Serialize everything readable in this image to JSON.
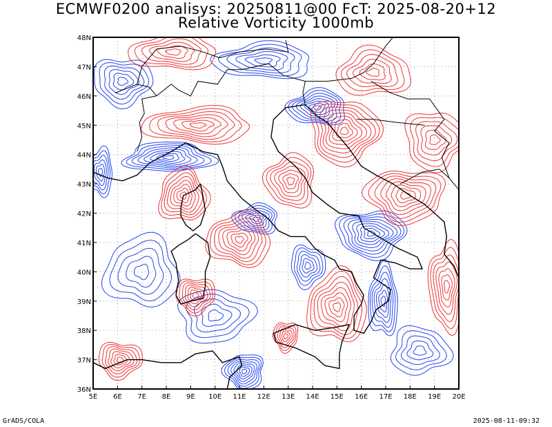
{
  "title_line1": "ECMWF0200 analisys: 20250811@00 FcT: 2025-08-20+12",
  "title_line2": "Relative Vorticity 1000mb",
  "footer_left": "GrADS/COLA",
  "footer_right": "2025-08-11-09:32",
  "map": {
    "lon_range": [
      5,
      20
    ],
    "lat_range": [
      36,
      48
    ],
    "lon_ticks": [
      "5E",
      "6E",
      "7E",
      "8E",
      "9E",
      "10E",
      "11E",
      "12E",
      "13E",
      "14E",
      "15E",
      "16E",
      "17E",
      "18E",
      "19E",
      "20E"
    ],
    "lat_ticks": [
      "36N",
      "37N",
      "38N",
      "39N",
      "40N",
      "41N",
      "42N",
      "43N",
      "44N",
      "45N",
      "46N",
      "47N",
      "48N"
    ],
    "colors": {
      "positive_contour": "#ee3333",
      "negative_contour": "#2244ee",
      "coastline": "#000000",
      "grid": "#999999"
    },
    "positive_centers": [
      {
        "lon": 15.3,
        "lat": 44.8,
        "w": 1.4,
        "h": 1.1,
        "n": 9
      },
      {
        "lon": 13.1,
        "lat": 43.1,
        "w": 1.0,
        "h": 0.9,
        "n": 7
      },
      {
        "lon": 8.7,
        "lat": 42.6,
        "w": 1.0,
        "h": 0.9,
        "n": 8
      },
      {
        "lon": 9.2,
        "lat": 39.2,
        "w": 0.8,
        "h": 0.6,
        "n": 7
      },
      {
        "lon": 11.0,
        "lat": 41.1,
        "w": 1.3,
        "h": 0.9,
        "n": 8
      },
      {
        "lon": 15.0,
        "lat": 38.8,
        "w": 1.2,
        "h": 1.2,
        "n": 8
      },
      {
        "lon": 17.8,
        "lat": 42.6,
        "w": 1.6,
        "h": 0.9,
        "n": 8
      },
      {
        "lon": 19.5,
        "lat": 39.5,
        "w": 0.7,
        "h": 1.5,
        "n": 7
      },
      {
        "lon": 6.1,
        "lat": 37.0,
        "w": 0.9,
        "h": 0.6,
        "n": 7
      },
      {
        "lon": 12.9,
        "lat": 37.8,
        "w": 0.5,
        "h": 0.5,
        "n": 6
      },
      {
        "lon": 9.3,
        "lat": 45.0,
        "w": 2.2,
        "h": 0.6,
        "n": 7
      },
      {
        "lon": 8.3,
        "lat": 47.5,
        "w": 1.8,
        "h": 0.6,
        "n": 6
      },
      {
        "lon": 16.5,
        "lat": 46.8,
        "w": 1.5,
        "h": 0.8,
        "n": 6
      },
      {
        "lon": 19.0,
        "lat": 44.5,
        "w": 1.2,
        "h": 1.0,
        "n": 6
      }
    ],
    "negative_centers": [
      {
        "lon": 14.2,
        "lat": 45.6,
        "w": 1.2,
        "h": 0.6,
        "n": 8
      },
      {
        "lon": 16.4,
        "lat": 41.3,
        "w": 1.4,
        "h": 0.8,
        "n": 9
      },
      {
        "lon": 11.7,
        "lat": 41.8,
        "w": 0.9,
        "h": 0.5,
        "n": 7
      },
      {
        "lon": 13.8,
        "lat": 40.2,
        "w": 0.7,
        "h": 0.7,
        "n": 6
      },
      {
        "lon": 16.9,
        "lat": 39.0,
        "w": 0.6,
        "h": 1.2,
        "n": 7
      },
      {
        "lon": 11.2,
        "lat": 36.6,
        "w": 0.8,
        "h": 0.6,
        "n": 8
      },
      {
        "lon": 8.1,
        "lat": 43.9,
        "w": 1.8,
        "h": 0.5,
        "n": 8
      },
      {
        "lon": 5.3,
        "lat": 43.4,
        "w": 0.5,
        "h": 0.8,
        "n": 6
      },
      {
        "lon": 7.0,
        "lat": 40.0,
        "w": 1.5,
        "h": 1.2,
        "n": 5
      },
      {
        "lon": 12.0,
        "lat": 47.2,
        "w": 2.0,
        "h": 0.6,
        "n": 6
      },
      {
        "lon": 6.2,
        "lat": 46.5,
        "w": 1.2,
        "h": 0.8,
        "n": 6
      },
      {
        "lon": 18.4,
        "lat": 37.3,
        "w": 1.2,
        "h": 0.8,
        "n": 5
      },
      {
        "lon": 10.0,
        "lat": 38.5,
        "w": 1.5,
        "h": 0.9,
        "n": 5
      }
    ],
    "coastlines": [
      [
        [
          7.5,
          43.8
        ],
        [
          8.2,
          44.1
        ],
        [
          8.8,
          44.4
        ],
        [
          9.5,
          44.1
        ],
        [
          10.1,
          44.0
        ],
        [
          10.3,
          43.6
        ],
        [
          10.5,
          43.1
        ],
        [
          11.1,
          42.5
        ],
        [
          11.7,
          42.1
        ],
        [
          12.2,
          41.8
        ],
        [
          12.6,
          41.4
        ],
        [
          13.1,
          41.2
        ],
        [
          13.7,
          41.2
        ],
        [
          14.1,
          40.8
        ],
        [
          14.4,
          40.6
        ],
        [
          14.9,
          40.4
        ],
        [
          15.1,
          40.1
        ],
        [
          15.6,
          40.0
        ],
        [
          15.8,
          39.6
        ],
        [
          16.1,
          39.2
        ],
        [
          16.0,
          38.9
        ],
        [
          15.7,
          38.5
        ],
        [
          15.7,
          38.0
        ],
        [
          16.1,
          37.9
        ],
        [
          16.4,
          38.3
        ],
        [
          16.6,
          38.7
        ],
        [
          17.1,
          39.0
        ],
        [
          17.2,
          39.4
        ],
        [
          16.5,
          39.8
        ],
        [
          16.8,
          40.4
        ],
        [
          17.4,
          40.3
        ],
        [
          18.0,
          40.1
        ],
        [
          18.5,
          40.1
        ],
        [
          18.3,
          40.5
        ],
        [
          17.5,
          40.8
        ],
        [
          16.9,
          41.1
        ],
        [
          16.1,
          41.5
        ],
        [
          15.9,
          41.9
        ],
        [
          15.1,
          42.0
        ],
        [
          14.6,
          42.3
        ],
        [
          14.0,
          42.7
        ],
        [
          13.7,
          43.2
        ],
        [
          13.3,
          43.6
        ],
        [
          12.6,
          44.1
        ],
        [
          12.3,
          44.6
        ],
        [
          12.4,
          45.2
        ],
        [
          12.9,
          45.6
        ],
        [
          13.7,
          45.7
        ]
      ],
      [
        [
          9.2,
          41.3
        ],
        [
          9.7,
          41.0
        ],
        [
          9.8,
          40.5
        ],
        [
          9.6,
          40.0
        ],
        [
          9.6,
          39.5
        ],
        [
          9.5,
          39.1
        ],
        [
          9.0,
          39.0
        ],
        [
          8.6,
          38.9
        ],
        [
          8.4,
          39.2
        ],
        [
          8.5,
          39.7
        ],
        [
          8.4,
          40.3
        ],
        [
          8.2,
          40.7
        ],
        [
          8.5,
          40.9
        ],
        [
          8.9,
          41.1
        ],
        [
          9.2,
          41.3
        ]
      ],
      [
        [
          9.4,
          43.0
        ],
        [
          9.5,
          42.6
        ],
        [
          9.6,
          42.1
        ],
        [
          9.4,
          41.6
        ],
        [
          9.1,
          41.4
        ],
        [
          8.8,
          41.6
        ],
        [
          8.6,
          41.9
        ],
        [
          8.6,
          42.2
        ],
        [
          8.7,
          42.6
        ],
        [
          9.2,
          42.8
        ],
        [
          9.4,
          43.0
        ]
      ],
      [
        [
          12.4,
          37.9
        ],
        [
          13.3,
          38.2
        ],
        [
          14.1,
          38.0
        ],
        [
          14.9,
          38.1
        ],
        [
          15.5,
          38.2
        ],
        [
          15.2,
          37.6
        ],
        [
          15.1,
          37.2
        ],
        [
          15.1,
          36.7
        ],
        [
          14.5,
          36.8
        ],
        [
          14.1,
          37.1
        ],
        [
          13.3,
          37.4
        ],
        [
          12.5,
          37.6
        ],
        [
          12.4,
          37.9
        ]
      ],
      [
        [
          13.7,
          45.7
        ],
        [
          14.2,
          45.3
        ],
        [
          14.6,
          45.1
        ],
        [
          15.0,
          44.7
        ],
        [
          15.5,
          44.2
        ],
        [
          16.0,
          43.6
        ],
        [
          16.6,
          43.3
        ],
        [
          17.3,
          43.0
        ],
        [
          18.0,
          42.6
        ],
        [
          18.6,
          42.3
        ],
        [
          19.0,
          42.0
        ],
        [
          19.4,
          41.7
        ],
        [
          19.5,
          41.2
        ],
        [
          19.4,
          40.6
        ],
        [
          19.8,
          40.2
        ],
        [
          20.0,
          39.8
        ]
      ],
      [
        [
          5.0,
          43.4
        ],
        [
          5.6,
          43.2
        ],
        [
          6.2,
          43.1
        ],
        [
          6.8,
          43.3
        ],
        [
          7.3,
          43.7
        ],
        [
          7.5,
          43.8
        ]
      ],
      [
        [
          5.0,
          36.9
        ],
        [
          5.5,
          36.7
        ],
        [
          6.4,
          37.0
        ],
        [
          7.0,
          37.0
        ],
        [
          7.8,
          36.9
        ],
        [
          8.6,
          36.9
        ],
        [
          9.2,
          37.2
        ],
        [
          9.9,
          37.3
        ],
        [
          10.3,
          36.9
        ],
        [
          11.0,
          37.1
        ],
        [
          11.1,
          36.8
        ],
        [
          10.6,
          36.4
        ],
        [
          10.5,
          36.0
        ]
      ]
    ],
    "borders": [
      [
        [
          6.8,
          44.1
        ],
        [
          7.0,
          44.6
        ],
        [
          6.9,
          45.1
        ],
        [
          7.1,
          45.4
        ],
        [
          7.0,
          45.9
        ],
        [
          7.6,
          46.0
        ],
        [
          8.2,
          46.4
        ],
        [
          8.5,
          46.2
        ],
        [
          9.0,
          46.0
        ],
        [
          9.3,
          46.5
        ],
        [
          10.1,
          46.4
        ],
        [
          10.5,
          46.9
        ],
        [
          11.1,
          46.9
        ],
        [
          12.2,
          47.1
        ],
        [
          12.8,
          46.7
        ],
        [
          13.7,
          46.5
        ],
        [
          13.6,
          46.1
        ],
        [
          13.7,
          45.7
        ]
      ],
      [
        [
          5.9,
          46.1
        ],
        [
          6.8,
          46.4
        ],
        [
          7.3,
          46.3
        ],
        [
          7.6,
          46.0
        ]
      ],
      [
        [
          6.8,
          46.4
        ],
        [
          7.0,
          47.0
        ],
        [
          7.6,
          47.6
        ],
        [
          8.6,
          47.7
        ],
        [
          9.5,
          47.5
        ],
        [
          10.2,
          47.3
        ],
        [
          11.0,
          47.5
        ],
        [
          12.1,
          47.6
        ],
        [
          13.0,
          47.5
        ],
        [
          12.9,
          47.9
        ]
      ],
      [
        [
          13.7,
          46.5
        ],
        [
          14.6,
          46.5
        ],
        [
          15.6,
          46.6
        ],
        [
          16.1,
          46.8
        ],
        [
          16.5,
          47.1
        ],
        [
          17.0,
          47.7
        ],
        [
          17.3,
          48.0
        ]
      ],
      [
        [
          16.4,
          46.5
        ],
        [
          17.2,
          46.1
        ],
        [
          17.9,
          45.9
        ],
        [
          18.8,
          45.9
        ],
        [
          19.4,
          45.2
        ],
        [
          19.0,
          44.8
        ],
        [
          19.6,
          44.4
        ],
        [
          19.3,
          43.9
        ],
        [
          19.6,
          43.2
        ]
      ],
      [
        [
          15.8,
          45.2
        ],
        [
          16.5,
          45.2
        ],
        [
          17.4,
          45.1
        ],
        [
          18.6,
          45.0
        ]
      ],
      [
        [
          17.6,
          43.0
        ],
        [
          18.5,
          43.4
        ],
        [
          19.2,
          43.5
        ],
        [
          19.6,
          43.2
        ],
        [
          20.0,
          42.8
        ]
      ]
    ]
  }
}
